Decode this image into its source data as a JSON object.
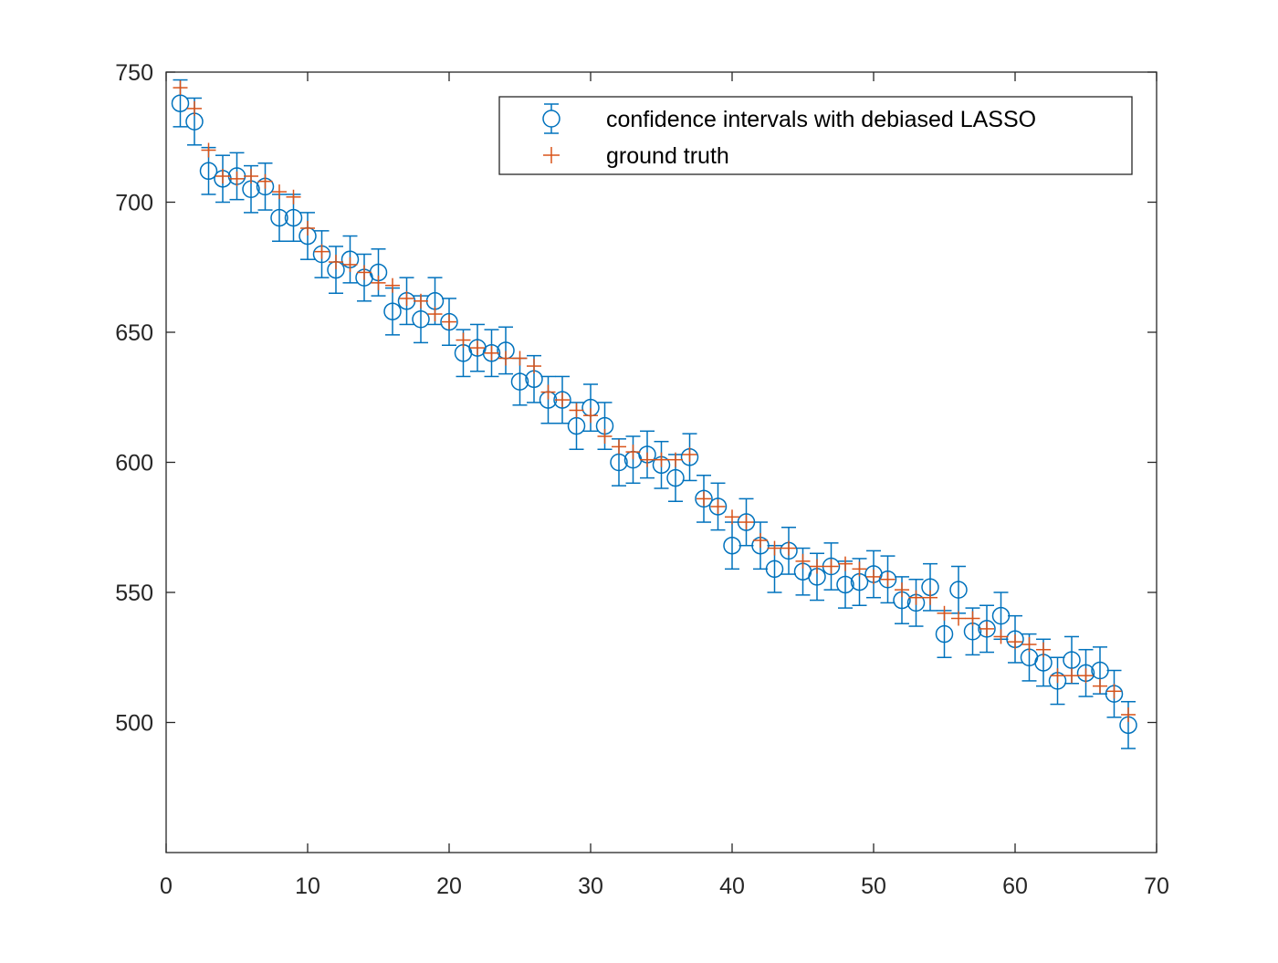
{
  "colors": {
    "ci_color": "#0072BD",
    "truth_color": "#D95319",
    "axis_color": "#262626",
    "background": "#ffffff"
  },
  "chart_data": {
    "type": "scatter",
    "title": "",
    "xlabel": "",
    "ylabel": "",
    "xlim": [
      0,
      70
    ],
    "ylim": [
      450,
      750
    ],
    "xticks": [
      0,
      10,
      20,
      30,
      40,
      50,
      60,
      70
    ],
    "yticks": [
      500,
      550,
      600,
      650,
      700,
      750
    ],
    "grid": false,
    "legend_position": "top-right",
    "x": [
      1,
      2,
      3,
      4,
      5,
      6,
      7,
      8,
      9,
      10,
      11,
      12,
      13,
      14,
      15,
      16,
      17,
      18,
      19,
      20,
      21,
      22,
      23,
      24,
      25,
      26,
      27,
      28,
      29,
      30,
      31,
      32,
      33,
      34,
      35,
      36,
      37,
      38,
      39,
      40,
      41,
      42,
      43,
      44,
      45,
      46,
      47,
      48,
      49,
      50,
      51,
      52,
      53,
      54,
      55,
      56,
      57,
      58,
      59,
      60,
      61,
      62,
      63,
      64,
      65,
      66,
      67,
      68
    ],
    "series": [
      {
        "name": "confidence intervals with debiased LASSO",
        "marker": "circle",
        "error_halfwidth": 9,
        "values": [
          738,
          731,
          712,
          709,
          710,
          705,
          706,
          694,
          694,
          687,
          680,
          674,
          678,
          671,
          673,
          658,
          662,
          655,
          662,
          654,
          642,
          644,
          642,
          643,
          631,
          632,
          624,
          624,
          614,
          621,
          614,
          600,
          601,
          603,
          599,
          594,
          602,
          586,
          583,
          568,
          577,
          568,
          559,
          566,
          558,
          556,
          560,
          553,
          554,
          557,
          555,
          547,
          546,
          552,
          534,
          551,
          535,
          536,
          541,
          532,
          525,
          523,
          516,
          524,
          519,
          520,
          511,
          499
        ]
      },
      {
        "name": "ground truth",
        "marker": "plus",
        "values": [
          744,
          736,
          720,
          710,
          709,
          710,
          708,
          704,
          702,
          690,
          681,
          677,
          676,
          673,
          669,
          668,
          663,
          662,
          657,
          654,
          647,
          644,
          642,
          640,
          640,
          637,
          627,
          624,
          620,
          618,
          610,
          606,
          604,
          601,
          601,
          601,
          603,
          586,
          583,
          579,
          577,
          570,
          567,
          567,
          562,
          560,
          560,
          561,
          559,
          556,
          555,
          551,
          548,
          548,
          542,
          540,
          540,
          536,
          533,
          531,
          530,
          528,
          518,
          518,
          518,
          514,
          512,
          503
        ]
      }
    ]
  }
}
